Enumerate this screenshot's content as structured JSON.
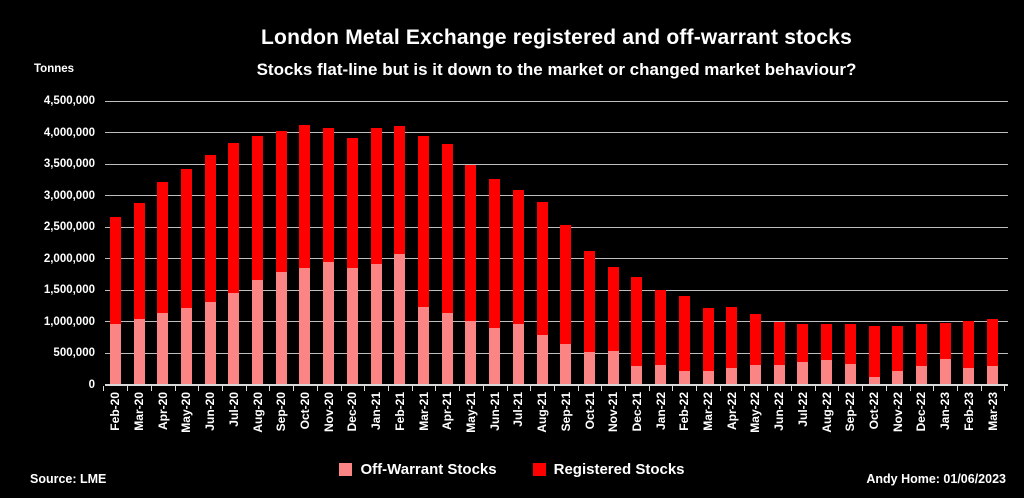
{
  "header": {
    "title": "London Metal Exchange registered and off-warrant stocks",
    "subtitle": "Stocks flat-line but is it down to the market or changed market behaviour?",
    "units_label": "Tonnes"
  },
  "footer": {
    "source": "Source: LME",
    "credit": "Andy Home: 01/06/2023"
  },
  "legend": [
    {
      "label": "Off-Warrant Stocks",
      "color": "#fb8584"
    },
    {
      "label": "Registered Stocks",
      "color": "#ff0000"
    }
  ],
  "colors": {
    "background": "#000000",
    "text": "#ffffff",
    "gridline": "#bdbdbd",
    "axis": "#d9d9d9",
    "off_warrant": "#fb8584",
    "registered": "#ff0000"
  },
  "chart_data": {
    "type": "bar",
    "stacked": true,
    "title": "London Metal Exchange registered and off-warrant stocks",
    "subtitle": "Stocks flat-line but is it down to the market or changed market behaviour?",
    "ylabel": "Tonnes",
    "xlabel": "",
    "ylim": [
      0,
      4500000
    ],
    "ytick_interval": 500000,
    "y_ticks": [
      0,
      500000,
      1000000,
      1500000,
      2000000,
      2500000,
      3000000,
      3500000,
      4000000,
      4500000
    ],
    "grid": true,
    "legend_position": "bottom",
    "categories": [
      "Feb-20",
      "Mar-20",
      "Apr-20",
      "May-20",
      "Jun-20",
      "Jul-20",
      "Aug-20",
      "Sep-20",
      "Oct-20",
      "Nov-20",
      "Dec-20",
      "Jan-21",
      "Feb-21",
      "Mar-21",
      "Apr-21",
      "May-21",
      "Jun-21",
      "Jul-21",
      "Aug-21",
      "Sep-21",
      "Oct-21",
      "Nov-21",
      "Dec-21",
      "Jan-22",
      "Feb-22",
      "Mar-22",
      "Apr-22",
      "May-22",
      "Jun-22",
      "Jul-22",
      "Aug-22",
      "Sep-22",
      "Oct-22",
      "Nov-22",
      "Dec-22",
      "Jan-23",
      "Feb-23",
      "Mar-23"
    ],
    "series": [
      {
        "name": "Off-Warrant Stocks",
        "color": "#fb8584",
        "values": [
          960000,
          1050000,
          1140000,
          1220000,
          1320000,
          1460000,
          1660000,
          1790000,
          1860000,
          1950000,
          1860000,
          1910000,
          2080000,
          1230000,
          1140000,
          1010000,
          900000,
          960000,
          790000,
          650000,
          530000,
          540000,
          300000,
          320000,
          230000,
          220000,
          270000,
          320000,
          320000,
          370000,
          390000,
          340000,
          120000,
          230000,
          300000,
          420000,
          270000,
          300000
        ]
      },
      {
        "name": "Registered Stocks",
        "color": "#ff0000",
        "values": [
          1710000,
          1830000,
          2080000,
          2210000,
          2320000,
          2370000,
          2280000,
          2240000,
          2260000,
          2130000,
          2060000,
          2170000,
          2030000,
          2720000,
          2680000,
          2480000,
          2370000,
          2130000,
          2110000,
          1880000,
          1590000,
          1330000,
          1410000,
          1190000,
          1180000,
          1000000,
          970000,
          810000,
          680000,
          590000,
          570000,
          620000,
          810000,
          700000,
          665000,
          570000,
          740000,
          740000
        ]
      }
    ]
  }
}
